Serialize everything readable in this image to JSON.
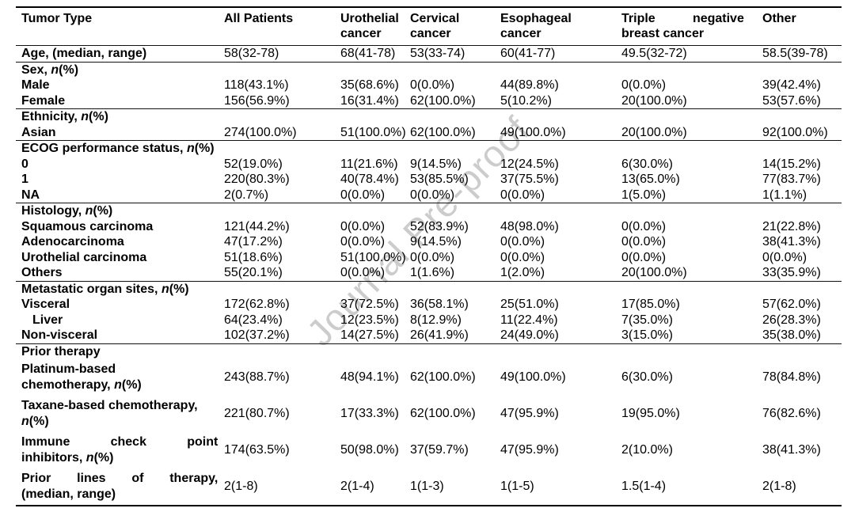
{
  "watermark": {
    "text": "Journal Pre-proof"
  },
  "table": {
    "header": [
      {
        "lines": [
          "Tumor Type"
        ]
      },
      {
        "lines": [
          "All Patients"
        ]
      },
      {
        "lines": [
          "Urothelial",
          "cancer"
        ]
      },
      {
        "lines": [
          "Cervical",
          "cancer"
        ]
      },
      {
        "lines": [
          "Esophageal",
          "cancer"
        ]
      },
      {
        "lines": [
          "Triple negative",
          "breast cancer"
        ],
        "justify_first": true
      },
      {
        "lines": [
          "Other"
        ]
      }
    ],
    "rows": [
      {
        "label_lines": [
          "Age, (median, range)"
        ],
        "values": [
          "58(32-78)",
          "68(41-78)",
          "53(33-74)",
          "60(41-77)",
          "49.5(32-72)",
          "58.5(39-78)"
        ],
        "rule_below": true
      },
      {
        "label_lines": [
          "Sex, n(%)"
        ],
        "values": [
          "",
          "",
          "",
          "",
          "",
          ""
        ]
      },
      {
        "label_lines": [
          "Male"
        ],
        "values": [
          "118(43.1%)",
          "35(68.6%)",
          "0(0.0%)",
          "44(89.8%)",
          "0(0.0%)",
          "39(42.4%)"
        ]
      },
      {
        "label_lines": [
          "Female"
        ],
        "values": [
          "156(56.9%)",
          "16(31.4%)",
          "62(100.0%)",
          "5(10.2%)",
          "20(100.0%)",
          "53(57.6%)"
        ],
        "rule_below": true
      },
      {
        "label_lines": [
          "Ethnicity, n(%)"
        ],
        "values": [
          "",
          "",
          "",
          "",
          "",
          ""
        ]
      },
      {
        "label_lines": [
          "Asian"
        ],
        "values": [
          "274(100.0%)",
          "51(100.0%)",
          "62(100.0%)",
          "49(100.0%)",
          "20(100.0%)",
          "92(100.0%)"
        ],
        "rule_below": true
      },
      {
        "label_lines": [
          "ECOG performance status, n(%)"
        ],
        "values": [
          "",
          "",
          "",
          "",
          "",
          ""
        ]
      },
      {
        "label_lines": [
          "0"
        ],
        "values": [
          "52(19.0%)",
          "11(21.6%)",
          "9(14.5%)",
          "12(24.5%)",
          "6(30.0%)",
          "14(15.2%)"
        ]
      },
      {
        "label_lines": [
          "1"
        ],
        "values": [
          "220(80.3%)",
          "40(78.4%)",
          "53(85.5%)",
          "37(75.5%)",
          "13(65.0%)",
          "77(83.7%)"
        ]
      },
      {
        "label_lines": [
          "NA"
        ],
        "values": [
          "2(0.7%)",
          "0(0.0%)",
          "0(0.0%)",
          "0(0.0%)",
          "1(5.0%)",
          "1(1.1%)"
        ],
        "rule_below": true
      },
      {
        "label_lines": [
          "Histology, n(%)"
        ],
        "values": [
          "",
          "",
          "",
          "",
          "",
          ""
        ]
      },
      {
        "label_lines": [
          "Squamous carcinoma"
        ],
        "values": [
          "121(44.2%)",
          "0(0.0%)",
          "52(83.9%)",
          "48(98.0%)",
          "0(0.0%)",
          "21(22.8%)"
        ]
      },
      {
        "label_lines": [
          "Adenocarcinoma"
        ],
        "values": [
          "47(17.2%)",
          "0(0.0%)",
          "9(14.5%)",
          "0(0.0%)",
          "0(0.0%)",
          "38(41.3%)"
        ]
      },
      {
        "label_lines": [
          "Urothelial carcinoma"
        ],
        "values": [
          "51(18.6%)",
          "51(100.0%)",
          "0(0.0%)",
          "0(0.0%)",
          "0(0.0%)",
          "0(0.0%)"
        ]
      },
      {
        "label_lines": [
          "Others"
        ],
        "values": [
          "55(20.1%)",
          "0(0.0%)",
          "1(1.6%)",
          "1(2.0%)",
          "20(100.0%)",
          "33(35.9%)"
        ],
        "rule_below": true
      },
      {
        "label_lines": [
          "Metastatic organ sites, n(%)"
        ],
        "values": [
          "",
          "",
          "",
          "",
          "",
          ""
        ]
      },
      {
        "label_lines": [
          "Visceral"
        ],
        "values": [
          "172(62.8%)",
          "37(72.5%)",
          "36(58.1%)",
          "25(51.0%)",
          "17(85.0%)",
          "57(62.0%)"
        ]
      },
      {
        "label_lines": [
          "Liver"
        ],
        "indent": true,
        "values": [
          "64(23.4%)",
          "12(23.5%)",
          "8(12.9%)",
          "11(22.4%)",
          "7(35.0%)",
          "26(28.3%)"
        ]
      },
      {
        "label_lines": [
          "Non-visceral"
        ],
        "values": [
          "102(37.2%)",
          "14(27.5%)",
          "26(41.9%)",
          "24(49.0%)",
          "3(15.0%)",
          "35(38.0%)"
        ],
        "rule_below": true
      },
      {
        "label_lines": [
          "Prior therapy"
        ],
        "values": [
          "",
          "",
          "",
          "",
          "",
          ""
        ]
      },
      {
        "label_lines": [
          "Platinum-based",
          "chemotherapy, n(%)"
        ],
        "values": [
          "243(88.7%)",
          "48(94.1%)",
          "62(100.0%)",
          "49(100.0%)",
          "6(30.0%)",
          "78(84.8%)"
        ]
      },
      {
        "label_lines": [
          "Taxane-based chemotherapy,",
          "n(%)"
        ],
        "values": [
          "221(80.7%)",
          "17(33.3%)",
          "62(100.0%)",
          "47(95.9%)",
          "19(95.0%)",
          "76(82.6%)"
        ]
      },
      {
        "label_lines": [
          "Immune check point",
          "inhibitors, n(%)"
        ],
        "justify_first": true,
        "values": [
          "174(63.5%)",
          "50(98.0%)",
          "37(59.7%)",
          "47(95.9%)",
          "2(10.0%)",
          "38(41.3%)"
        ]
      },
      {
        "label_lines": [
          "Prior lines of therapy,",
          "(median, range)"
        ],
        "justify_first": true,
        "values": [
          "2(1-8)",
          "2(1-4)",
          "1(1-3)",
          "1(1-5)",
          "1.5(1-4)",
          "2(1-8)"
        ]
      }
    ]
  }
}
